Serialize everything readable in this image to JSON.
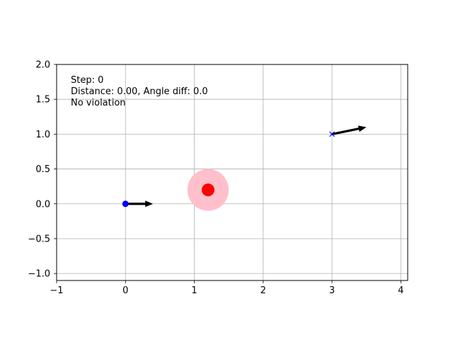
{
  "chart_data": {
    "type": "scatter",
    "title": "",
    "xlabel": "",
    "ylabel": "",
    "xlim": [
      -1,
      4.1
    ],
    "ylim": [
      -1.1,
      2.0
    ],
    "grid": true,
    "x_ticks": [
      {
        "value": -1,
        "label": "−1"
      },
      {
        "value": 0,
        "label": "0"
      },
      {
        "value": 1,
        "label": "1"
      },
      {
        "value": 2,
        "label": "2"
      },
      {
        "value": 3,
        "label": "3"
      },
      {
        "value": 4,
        "label": "4"
      }
    ],
    "y_ticks": [
      {
        "value": -1.0,
        "label": "−1.0"
      },
      {
        "value": -0.5,
        "label": "−0.5"
      },
      {
        "value": 0.0,
        "label": "0.0"
      },
      {
        "value": 0.5,
        "label": "0.5"
      },
      {
        "value": 1.0,
        "label": "1.0"
      },
      {
        "value": 1.5,
        "label": "1.5"
      },
      {
        "value": 2.0,
        "label": "2.0"
      }
    ],
    "annotations": [
      "Step: 0",
      "Distance: 0.00, Angle diff: 0.0",
      "No violation"
    ],
    "annotation_position": "top-left",
    "agent": {
      "x": 0.0,
      "y": 0.0,
      "color": "#0000ff",
      "marker": "circle",
      "heading": {
        "dx": 0.4,
        "dy": 0.0
      }
    },
    "goal": {
      "x": 3.0,
      "y": 1.0,
      "color": "#0000ff",
      "marker": "x",
      "heading": {
        "dx": 0.5,
        "dy": 0.1
      }
    },
    "obstacle": {
      "x": 1.2,
      "y": 0.2,
      "radius": 0.3,
      "core_color": "#ff0000",
      "zone_color": "#ffc0cb"
    },
    "arrow_color": "#000000"
  }
}
